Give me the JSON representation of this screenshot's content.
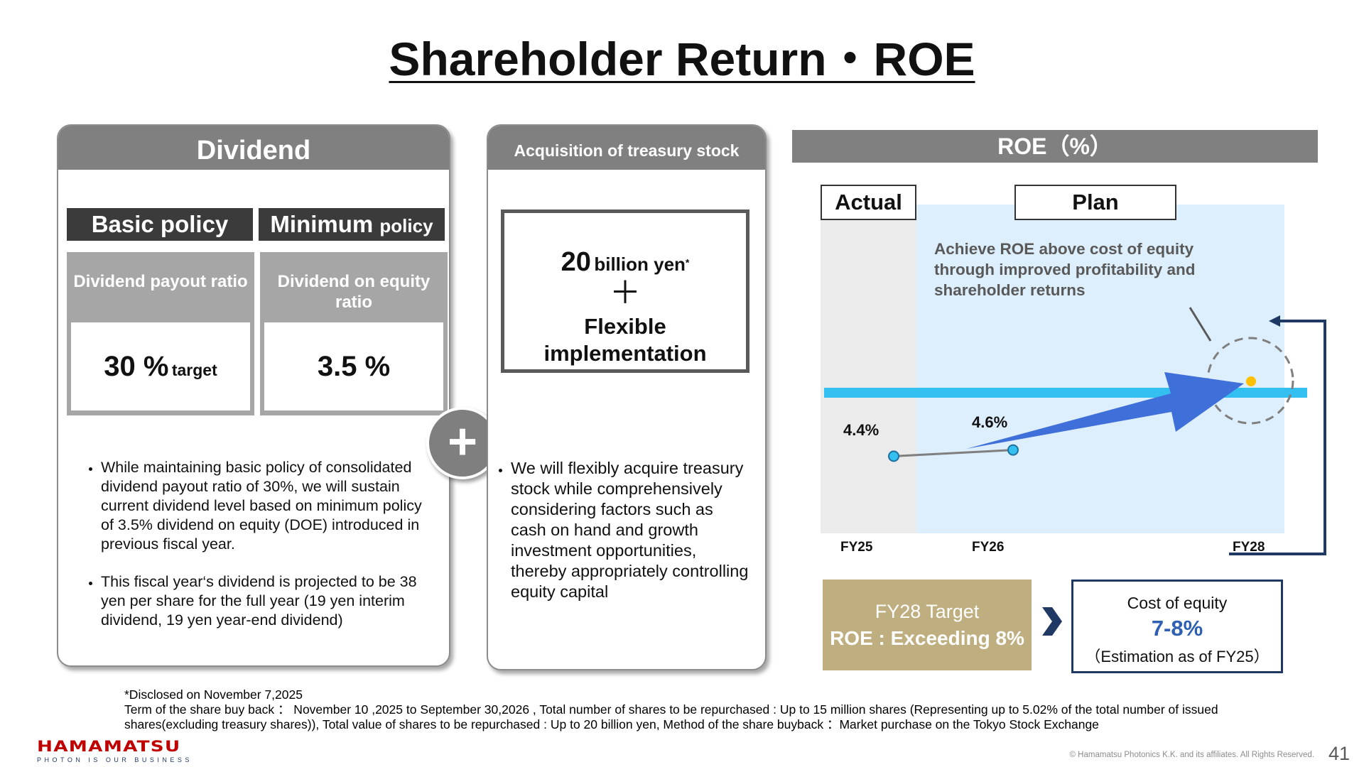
{
  "title": "Shareholder Return・ROE",
  "dividend": {
    "header": "Dividend",
    "basic_policy": "Basic policy",
    "minimum_policy_main": "Minimum ",
    "minimum_policy_small": "policy",
    "box1_label": "Dividend payout ratio",
    "box1_value_main": "30 %",
    "box1_value_small": "target",
    "box2_label": "Dividend on equity ratio",
    "box2_value": "3.5 %",
    "bullets": [
      "While maintaining basic policy of consolidated dividend payout ratio of 30%, we will sustain current dividend level based on minimum policy of 3.5% dividend on equity (DOE) introduced in previous fiscal year.",
      "This fiscal year‘s dividend is projected to be 38 yen per share for the full year (19 yen interim dividend, 19 yen year-end dividend)"
    ]
  },
  "plus_symbol": "+",
  "treasury": {
    "header": "Acquisition of treasury stock",
    "amount_num": "20",
    "amount_unit": "billion yen",
    "amount_note": "*",
    "plus": "＋",
    "flexible": "Flexible implementation",
    "bullet": "We will flexibly acquire treasury stock while comprehensively considering factors such as cash on hand and growth investment opportunities, thereby appropriately controlling equity capital"
  },
  "roe": {
    "header": "ROE（%）",
    "actual_label": "Actual",
    "plan_label": "Plan",
    "note": "Achieve ROE above cost of equity through improved profitability and shareholder returns",
    "target_label": "FY28 Target",
    "target_value": "ROE : Exceeding 8%",
    "coe_label": "Cost of equity",
    "coe_value": "7-8%",
    "coe_note": "（Estimation as of FY25）",
    "colors": {
      "actual_bg": "#ebebeb",
      "plan_bg": "#ddeefc",
      "line": "#33c0f0",
      "arrow": "#3f6fd8",
      "target_box": "#bfae7f",
      "coe_border": "#1f3864",
      "target_dot": "#ffc000"
    }
  },
  "chart_data": {
    "type": "line",
    "categories": [
      "FY25",
      "FY26",
      "FY28"
    ],
    "series": [
      {
        "values": [
          4.4,
          4.6,
          null
        ]
      }
    ],
    "data_labels": [
      "4.4%",
      "4.6%"
    ]
  },
  "footer": {
    "line1": "*Disclosed on November 7,2025",
    "line2": "Term of the share buy back ： November 10 ,2025 to September 30,2026 , Total number of shares to be repurchased : Up to 15 million shares (Representing up to 5.02% of the total number of issued",
    "line3": "shares(excluding treasury shares)), Total value of shares to be repurchased : Up to 20 billion yen, Method of the share buyback ：Market purchase on the Tokyo Stock Exchange"
  },
  "logo": {
    "name": "HAMAMATSU",
    "tagline": "PHOTON IS OUR BUSINESS"
  },
  "copyright": "© Hamamatsu Photonics K.K. and its affiliates. All Rights Reserved.",
  "page_number": "41"
}
